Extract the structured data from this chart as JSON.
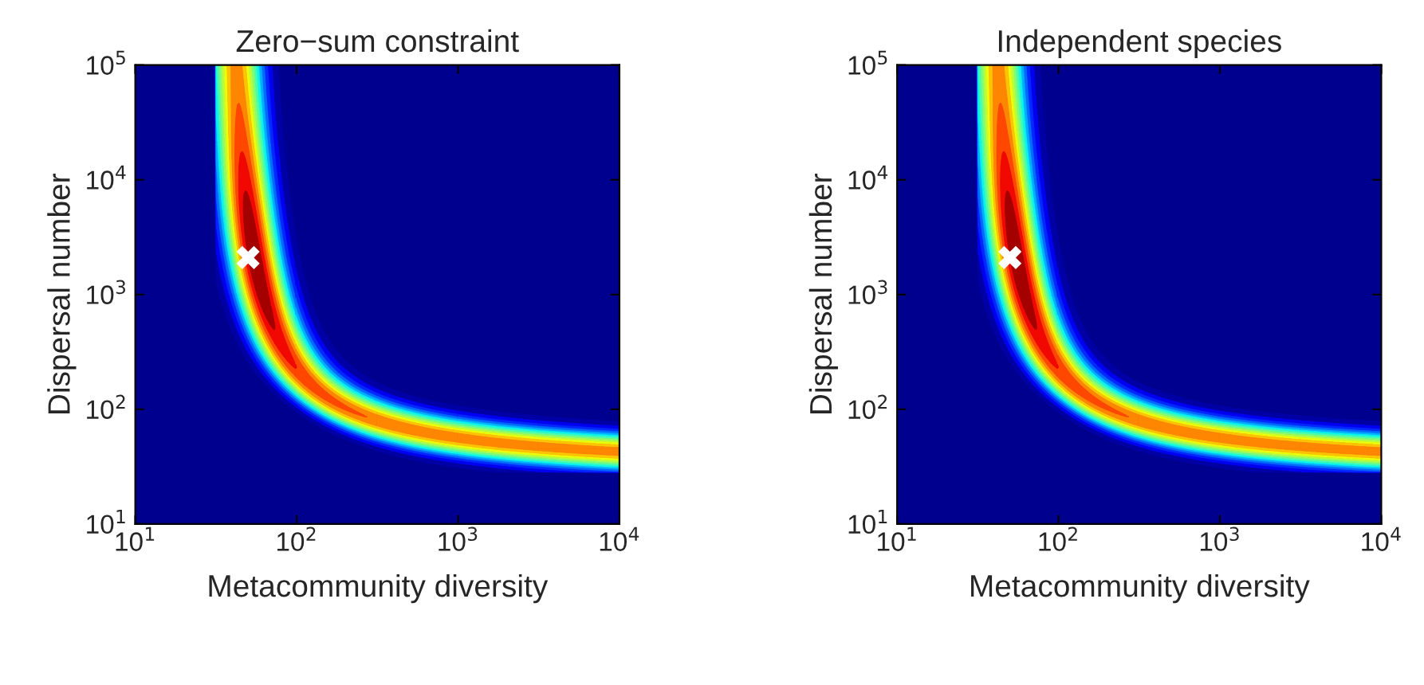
{
  "chart_data": [
    {
      "type": "scatter",
      "title": "Zero−sum constraint",
      "xlabel": "Metacommunity diversity",
      "ylabel": "Dispersal number",
      "log": "xy",
      "grid": false,
      "marker": "cross",
      "x": [
        50
      ],
      "series": [
        {
          "color": "#ffffff",
          "values": [
            2100
          ]
        }
      ],
      "xlim": [
        10,
        10000
      ],
      "ylim": [
        10,
        100000
      ],
      "xticks": [
        {
          "value": 10,
          "label": "10$^{1}$"
        },
        {
          "value": 100,
          "label": "10$^{2}$"
        },
        {
          "value": 1000,
          "label": "10$^{3}$"
        },
        {
          "value": 10000,
          "label": "10$^{4}$"
        }
      ],
      "yticks": [
        {
          "value": 10,
          "label": "10$^{1}$"
        },
        {
          "value": 100,
          "label": "10$^{2}$"
        },
        {
          "value": 1000,
          "label": "10$^{3}$"
        },
        {
          "value": 10000,
          "label": "10$^{4}$"
        },
        {
          "value": 100000,
          "label": "10$^{5}$"
        }
      ]
    },
    {
      "type": "scatter",
      "title": "Independent species",
      "xlabel": "Metacommunity diversity",
      "ylabel": "Dispersal number",
      "log": "xy",
      "grid": false,
      "marker": "cross",
      "x": [
        50
      ],
      "series": [
        {
          "color": "#ffffff",
          "values": [
            2100
          ]
        }
      ],
      "xlim": [
        10,
        10000
      ],
      "ylim": [
        10,
        100000
      ],
      "xticks": [
        {
          "value": 10,
          "label": "10$^{1}$"
        },
        {
          "value": 100,
          "label": "10$^{2}$"
        },
        {
          "value": 1000,
          "label": "10$^{3}$"
        },
        {
          "value": 10000,
          "label": "10$^{4}$"
        }
      ],
      "yticks": [
        {
          "value": 10,
          "label": "10$^{1}$"
        },
        {
          "value": 100,
          "label": "10$^{2}$"
        },
        {
          "value": 1000,
          "label": "10$^{3}$"
        },
        {
          "value": 10000,
          "label": "10$^{4}$"
        },
        {
          "value": 100000,
          "label": "10$^{5}$"
        }
      ]
    }
  ]
}
